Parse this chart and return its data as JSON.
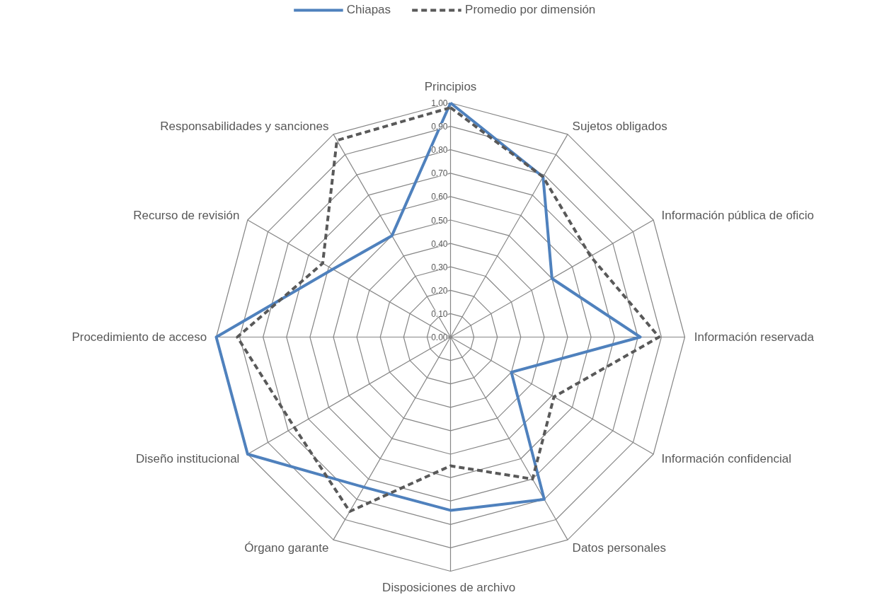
{
  "chart_data": {
    "type": "radar",
    "categories": [
      "Principios",
      "Sujetos obligados",
      "Información pública de oficio",
      "Información reservada",
      "Información confidencial",
      "Datos personales",
      "Disposiciones  de archivo",
      "Órgano garante",
      "Diseño institucional",
      "Procedimiento de acceso",
      "Recurso de revisión",
      "Responsabilidades y sanciones"
    ],
    "series": [
      {
        "name": "Chiapas",
        "color": "#4f81bd",
        "line_style": "solid",
        "values": [
          1.0,
          0.79,
          0.5,
          0.81,
          0.3,
          0.8,
          0.74,
          0.74,
          1.0,
          1.0,
          0.58,
          0.5
        ]
      },
      {
        "name": "Promedio por dimensión",
        "color": "#595959",
        "line_style": "dashed",
        "values": [
          0.98,
          0.79,
          0.69,
          0.89,
          0.51,
          0.7,
          0.55,
          0.86,
          0.77,
          0.91,
          0.63,
          0.97
        ]
      }
    ],
    "ylim": [
      0,
      1
    ],
    "yticks": [
      {
        "value": 0,
        "label": "0.00"
      },
      {
        "value": 0.1,
        "label": "0.10"
      },
      {
        "value": 0.2,
        "label": "0.20"
      },
      {
        "value": 0.3,
        "label": "0.30"
      },
      {
        "value": 0.4,
        "label": "0.40"
      },
      {
        "value": 0.5,
        "label": "0.50"
      },
      {
        "value": 0.6,
        "label": "0.60"
      },
      {
        "value": 0.7,
        "label": "0.70"
      },
      {
        "value": 0.8,
        "label": "0.80"
      },
      {
        "value": 0.9,
        "label": "0.90"
      },
      {
        "value": 1.0,
        "label": "1.00"
      }
    ],
    "grid": true,
    "legend": "top"
  }
}
